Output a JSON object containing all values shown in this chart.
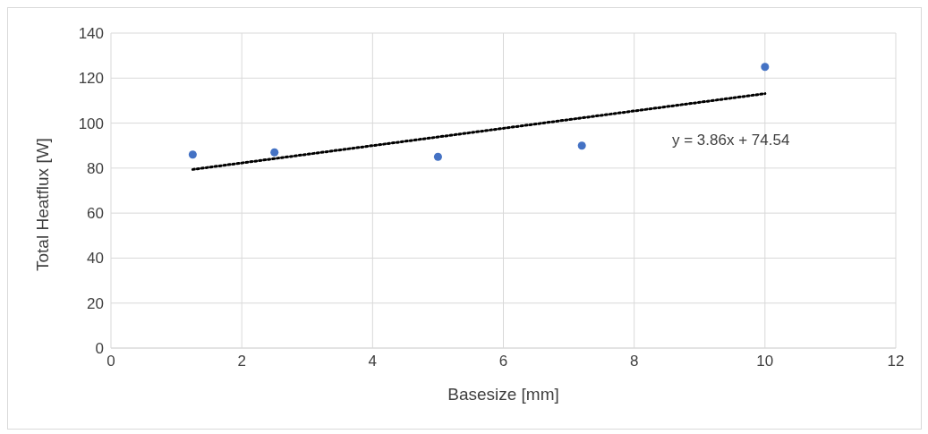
{
  "chart_data": {
    "type": "scatter",
    "xlabel": "Basesize [mm]",
    "ylabel": "Total Heatflux [W]",
    "xlim": [
      0,
      12
    ],
    "xticks": [
      0,
      2,
      4,
      6,
      8,
      10,
      12
    ],
    "ylim": [
      0,
      140
    ],
    "yticks": [
      0,
      20,
      40,
      60,
      80,
      100,
      120,
      140
    ],
    "grid": true,
    "legend": false,
    "marker": "circle",
    "annotations": [
      "y = 3.86x + 74.54"
    ],
    "series": [
      {
        "color": "#4472c4",
        "x": [
          1.25,
          2.5,
          5,
          7.2,
          10
        ],
        "values": [
          86,
          87,
          85,
          90,
          125
        ]
      },
      {
        "type": "line",
        "color": "#000000",
        "line_style": "dotted",
        "marker": "none",
        "x": [
          1.25,
          10
        ],
        "values": [
          79.4,
          113.1
        ]
      }
    ]
  }
}
